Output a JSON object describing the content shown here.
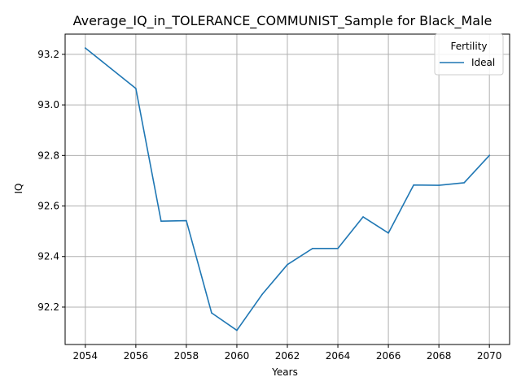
{
  "chart_data": {
    "type": "line",
    "title": "Average_IQ_in_TOLERANCE_COMMUNIST_Sample for Black_Male",
    "xlabel": "Years",
    "ylabel": "IQ",
    "x": [
      2054,
      2055,
      2056,
      2057,
      2058,
      2059,
      2060,
      2061,
      2062,
      2063,
      2064,
      2065,
      2066,
      2067,
      2068,
      2069,
      2070
    ],
    "series": [
      {
        "name": "Ideal",
        "color": "#1f77b4",
        "values": [
          93.225,
          93.145,
          93.065,
          92.54,
          92.542,
          92.177,
          92.108,
          92.25,
          92.368,
          92.432,
          92.432,
          92.557,
          92.493,
          92.683,
          92.682,
          92.692,
          92.8
        ]
      }
    ],
    "xlim": [
      2053.2,
      2070.8
    ],
    "ylim": [
      92.052,
      93.28
    ],
    "xticks": [
      2054,
      2056,
      2058,
      2060,
      2062,
      2064,
      2066,
      2068,
      2070
    ],
    "xtick_labels": [
      "2054",
      "2056",
      "2058",
      "2060",
      "2062",
      "2064",
      "2066",
      "2068",
      "2070"
    ],
    "yticks": [
      92.2,
      92.4,
      92.6,
      92.8,
      93.0,
      93.2
    ],
    "ytick_labels": [
      "92.2",
      "92.4",
      "92.6",
      "92.8",
      "93.0",
      "93.2"
    ],
    "grid": true,
    "legend": {
      "title": "Fertility",
      "placement": "top-right"
    }
  }
}
